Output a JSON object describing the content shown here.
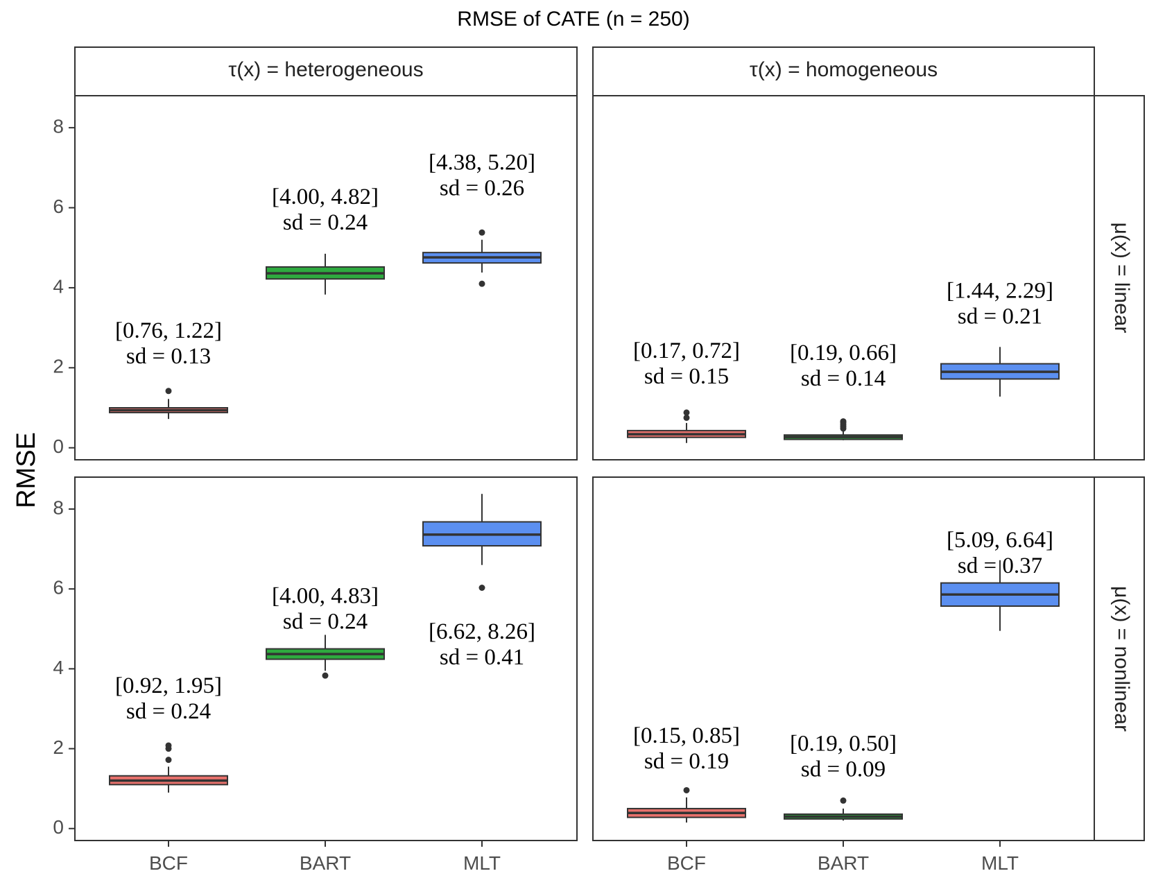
{
  "chart_data": {
    "type": "boxplot",
    "title": "RMSE of CATE (n = 250)",
    "ylabel": "RMSE",
    "categories": [
      "BCF",
      "BART",
      "MLT"
    ],
    "ylim": [
      -0.3,
      8.8
    ],
    "yticks": [
      0,
      2,
      4,
      6,
      8
    ],
    "grid": false,
    "colors": {
      "BCF": "#E8716C",
      "BART": "#2EAA3F",
      "MLT": "#5B8FF0"
    },
    "col_facets": [
      "τ(x) = heterogeneous",
      "τ(x) = homogeneous"
    ],
    "row_facets": [
      "μ(x) = linear",
      "μ(x) = nonlinear"
    ],
    "panels": [
      {
        "col": 0,
        "row": 0,
        "boxes": [
          {
            "category": "BCF",
            "q1": 0.88,
            "median": 0.94,
            "q3": 1.0,
            "whisker_low": 0.72,
            "whisker_high": 1.22,
            "outliers": [
              1.42
            ]
          },
          {
            "category": "BART",
            "q1": 4.22,
            "median": 4.36,
            "q3": 4.52,
            "whisker_low": 3.83,
            "whisker_high": 4.85,
            "outliers": []
          },
          {
            "category": "MLT",
            "q1": 4.62,
            "median": 4.76,
            "q3": 4.88,
            "whisker_low": 4.38,
            "whisker_high": 5.2,
            "outliers": [
              5.38,
              4.1
            ]
          }
        ],
        "annotations": [
          {
            "category": "BCF",
            "interval": "[0.76, 1.22]",
            "sd": "sd = 0.13",
            "y": 2.75
          },
          {
            "category": "BART",
            "interval": "[4.00, 4.82]",
            "sd": "sd = 0.24",
            "y": 6.1
          },
          {
            "category": "MLT",
            "interval": "[4.38, 5.20]",
            "sd": "sd = 0.26",
            "y": 6.95
          }
        ]
      },
      {
        "col": 1,
        "row": 0,
        "boxes": [
          {
            "category": "BCF",
            "q1": 0.26,
            "median": 0.34,
            "q3": 0.43,
            "whisker_low": 0.12,
            "whisker_high": 0.62,
            "outliers": [
              0.75,
              0.88
            ]
          },
          {
            "category": "BART",
            "q1": 0.21,
            "median": 0.27,
            "q3": 0.32,
            "whisker_low": 0.19,
            "whisker_high": 0.42,
            "outliers": [
              0.48,
              0.53,
              0.58,
              0.63,
              0.66
            ]
          },
          {
            "category": "MLT",
            "q1": 1.72,
            "median": 1.9,
            "q3": 2.1,
            "whisker_low": 1.28,
            "whisker_high": 2.52,
            "outliers": []
          }
        ],
        "annotations": [
          {
            "category": "BCF",
            "interval": "[0.17, 0.72]",
            "sd": "sd = 0.15",
            "y": 2.25
          },
          {
            "category": "BART",
            "interval": "[0.19, 0.66]",
            "sd": "sd = 0.14",
            "y": 2.2
          },
          {
            "category": "MLT",
            "interval": "[1.44, 2.29]",
            "sd": "sd = 0.21",
            "y": 3.75
          }
        ]
      },
      {
        "col": 0,
        "row": 1,
        "boxes": [
          {
            "category": "BCF",
            "q1": 1.1,
            "median": 1.2,
            "q3": 1.32,
            "whisker_low": 0.9,
            "whisker_high": 1.55,
            "outliers": [
              1.72,
              2.0,
              2.08
            ]
          },
          {
            "category": "BART",
            "q1": 4.24,
            "median": 4.37,
            "q3": 4.5,
            "whisker_low": 3.95,
            "whisker_high": 4.85,
            "outliers": [
              3.83
            ]
          },
          {
            "category": "MLT",
            "q1": 7.08,
            "median": 7.36,
            "q3": 7.68,
            "whisker_low": 6.6,
            "whisker_high": 8.38,
            "outliers": [
              6.03
            ]
          }
        ],
        "annotations": [
          {
            "category": "BCF",
            "interval": "[0.92, 1.95]",
            "sd": "sd = 0.24",
            "y": 3.4
          },
          {
            "category": "BART",
            "interval": "[4.00, 4.83]",
            "sd": "sd = 0.24",
            "y": 5.65
          },
          {
            "category": "MLT",
            "interval": "[6.62, 8.26]",
            "sd": "sd = 0.41",
            "y": 4.75
          }
        ]
      },
      {
        "col": 1,
        "row": 1,
        "boxes": [
          {
            "category": "BCF",
            "q1": 0.28,
            "median": 0.39,
            "q3": 0.5,
            "whisker_low": 0.15,
            "whisker_high": 0.78,
            "outliers": [
              0.96
            ]
          },
          {
            "category": "BART",
            "q1": 0.24,
            "median": 0.3,
            "q3": 0.36,
            "whisker_low": 0.2,
            "whisker_high": 0.5,
            "outliers": [
              0.7
            ]
          },
          {
            "category": "MLT",
            "q1": 5.57,
            "median": 5.86,
            "q3": 6.15,
            "whisker_low": 4.95,
            "whisker_high": 6.72,
            "outliers": []
          }
        ],
        "annotations": [
          {
            "category": "BCF",
            "interval": "[0.15, 0.85]",
            "sd": "sd = 0.19",
            "y": 2.15
          },
          {
            "category": "BART",
            "interval": "[0.19, 0.50]",
            "sd": "sd = 0.09",
            "y": 1.95
          },
          {
            "category": "MLT",
            "interval": "[5.09, 6.64]",
            "sd": "sd = 0.37",
            "y": 7.05
          }
        ]
      }
    ]
  }
}
